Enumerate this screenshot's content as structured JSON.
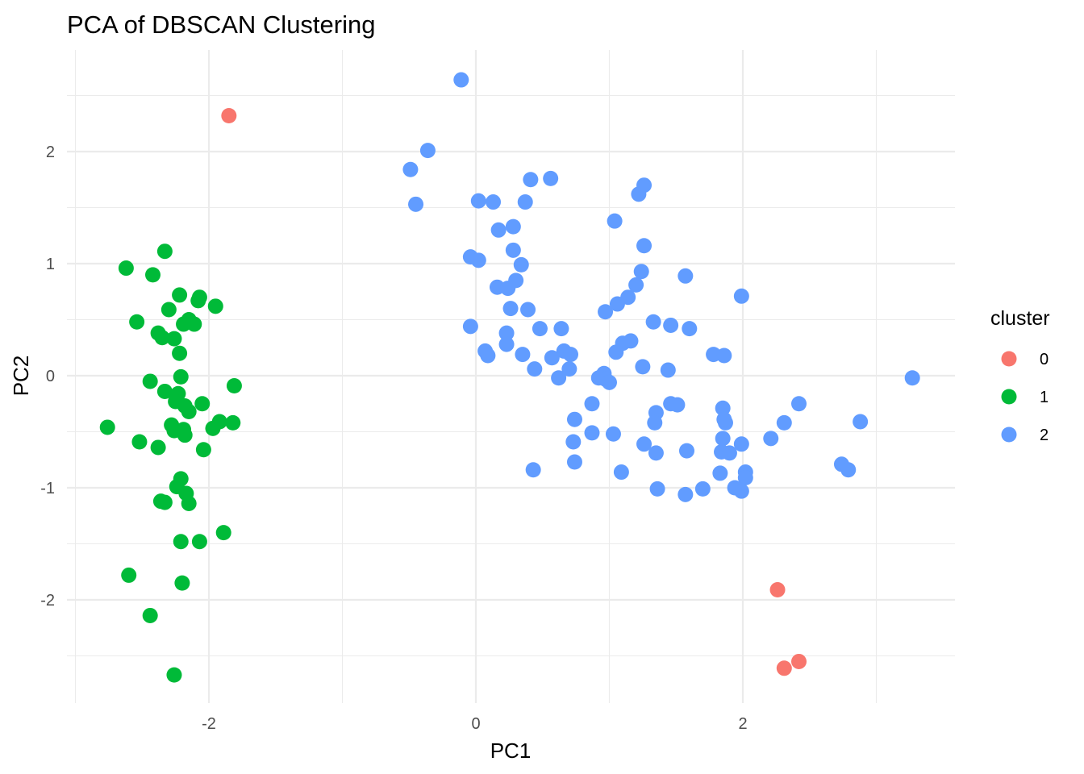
{
  "chart_data": {
    "type": "scatter",
    "title": "PCA of DBSCAN Clustering",
    "xlabel": "PC1",
    "ylabel": "PC2",
    "xlim": [
      -3.0,
      3.6
    ],
    "ylim": [
      -2.9,
      2.9
    ],
    "x_ticks": [
      -2,
      0,
      2
    ],
    "x_tick_labels": [
      "-2",
      "0",
      "2"
    ],
    "y_ticks": [
      -2,
      -1,
      0,
      1,
      2
    ],
    "y_tick_labels": [
      "-2",
      "-1",
      "0",
      "1",
      "2"
    ],
    "grid": true,
    "legend": {
      "title": "cluster",
      "position": "right",
      "entries": [
        {
          "label": "0",
          "color": "#F8766D"
        },
        {
          "label": "1",
          "color": "#00BA38"
        },
        {
          "label": "2",
          "color": "#619CFF"
        }
      ]
    },
    "series": [
      {
        "name": "0",
        "color": "#F8766D",
        "points": [
          [
            -1.85,
            2.32
          ],
          [
            2.26,
            -1.91
          ],
          [
            2.31,
            -2.61
          ],
          [
            2.42,
            -2.55
          ]
        ]
      },
      {
        "name": "1",
        "color": "#00BA38",
        "points": [
          [
            -2.33,
            1.11
          ],
          [
            -2.62,
            0.96
          ],
          [
            -2.42,
            0.9
          ],
          [
            -2.22,
            0.72
          ],
          [
            -2.07,
            0.7
          ],
          [
            -2.08,
            0.67
          ],
          [
            -1.95,
            0.62
          ],
          [
            -2.3,
            0.59
          ],
          [
            -2.15,
            0.5
          ],
          [
            -2.11,
            0.46
          ],
          [
            -2.19,
            0.46
          ],
          [
            -2.54,
            0.48
          ],
          [
            -2.38,
            0.38
          ],
          [
            -2.35,
            0.34
          ],
          [
            -2.26,
            0.33
          ],
          [
            -2.22,
            0.2
          ],
          [
            -2.21,
            -0.01
          ],
          [
            -2.44,
            -0.05
          ],
          [
            -2.33,
            -0.14
          ],
          [
            -2.23,
            -0.16
          ],
          [
            -2.25,
            -0.23
          ],
          [
            -1.81,
            -0.09
          ],
          [
            -2.18,
            -0.27
          ],
          [
            -2.15,
            -0.32
          ],
          [
            -2.05,
            -0.25
          ],
          [
            -2.28,
            -0.44
          ],
          [
            -2.26,
            -0.49
          ],
          [
            -2.19,
            -0.48
          ],
          [
            -2.18,
            -0.53
          ],
          [
            -1.97,
            -0.47
          ],
          [
            -1.92,
            -0.41
          ],
          [
            -1.82,
            -0.42
          ],
          [
            -2.76,
            -0.46
          ],
          [
            -2.52,
            -0.59
          ],
          [
            -2.38,
            -0.64
          ],
          [
            -2.04,
            -0.66
          ],
          [
            -2.21,
            -0.92
          ],
          [
            -2.24,
            -0.99
          ],
          [
            -2.17,
            -1.05
          ],
          [
            -2.36,
            -1.12
          ],
          [
            -2.33,
            -1.13
          ],
          [
            -2.15,
            -1.14
          ],
          [
            -1.89,
            -1.4
          ],
          [
            -2.21,
            -1.48
          ],
          [
            -2.07,
            -1.48
          ],
          [
            -2.6,
            -1.78
          ],
          [
            -2.2,
            -1.85
          ],
          [
            -2.44,
            -2.14
          ],
          [
            -2.26,
            -2.67
          ]
        ]
      },
      {
        "name": "2",
        "color": "#619CFF",
        "points": [
          [
            -0.11,
            2.64
          ],
          [
            -0.36,
            2.01
          ],
          [
            -0.49,
            1.84
          ],
          [
            -0.45,
            1.53
          ],
          [
            0.41,
            1.75
          ],
          [
            0.56,
            1.76
          ],
          [
            0.02,
            1.56
          ],
          [
            0.13,
            1.55
          ],
          [
            0.37,
            1.55
          ],
          [
            1.26,
            1.7
          ],
          [
            1.22,
            1.62
          ],
          [
            1.04,
            1.38
          ],
          [
            0.17,
            1.3
          ],
          [
            0.28,
            1.33
          ],
          [
            0.28,
            1.12
          ],
          [
            1.26,
            1.16
          ],
          [
            -0.04,
            1.06
          ],
          [
            0.02,
            1.03
          ],
          [
            0.34,
            0.99
          ],
          [
            1.24,
            0.93
          ],
          [
            1.57,
            0.89
          ],
          [
            0.3,
            0.85
          ],
          [
            0.16,
            0.79
          ],
          [
            0.24,
            0.78
          ],
          [
            1.2,
            0.81
          ],
          [
            1.14,
            0.7
          ],
          [
            1.06,
            0.64
          ],
          [
            0.97,
            0.57
          ],
          [
            0.39,
            0.59
          ],
          [
            0.26,
            0.6
          ],
          [
            1.99,
            0.71
          ],
          [
            -0.04,
            0.44
          ],
          [
            0.48,
            0.42
          ],
          [
            0.64,
            0.42
          ],
          [
            1.33,
            0.48
          ],
          [
            1.46,
            0.45
          ],
          [
            1.6,
            0.42
          ],
          [
            0.23,
            0.38
          ],
          [
            0.23,
            0.28
          ],
          [
            1.1,
            0.29
          ],
          [
            1.16,
            0.31
          ],
          [
            1.05,
            0.21
          ],
          [
            0.07,
            0.22
          ],
          [
            0.09,
            0.18
          ],
          [
            0.35,
            0.19
          ],
          [
            0.57,
            0.16
          ],
          [
            0.66,
            0.22
          ],
          [
            0.71,
            0.19
          ],
          [
            1.78,
            0.19
          ],
          [
            1.86,
            0.18
          ],
          [
            0.44,
            0.06
          ],
          [
            0.7,
            0.06
          ],
          [
            1.25,
            0.08
          ],
          [
            1.44,
            0.05
          ],
          [
            0.62,
            -0.02
          ],
          [
            0.92,
            -0.02
          ],
          [
            0.96,
            0.02
          ],
          [
            0.97,
            -0.03
          ],
          [
            1.0,
            -0.06
          ],
          [
            3.27,
            -0.02
          ],
          [
            0.87,
            -0.25
          ],
          [
            1.46,
            -0.25
          ],
          [
            1.51,
            -0.26
          ],
          [
            1.85,
            -0.29
          ],
          [
            2.42,
            -0.25
          ],
          [
            1.35,
            -0.33
          ],
          [
            0.74,
            -0.39
          ],
          [
            1.34,
            -0.42
          ],
          [
            1.87,
            -0.42
          ],
          [
            1.86,
            -0.39
          ],
          [
            2.31,
            -0.42
          ],
          [
            2.88,
            -0.41
          ],
          [
            0.87,
            -0.51
          ],
          [
            1.03,
            -0.52
          ],
          [
            0.73,
            -0.59
          ],
          [
            1.85,
            -0.56
          ],
          [
            2.21,
            -0.56
          ],
          [
            1.26,
            -0.61
          ],
          [
            1.99,
            -0.61
          ],
          [
            1.35,
            -0.69
          ],
          [
            1.58,
            -0.67
          ],
          [
            1.84,
            -0.68
          ],
          [
            1.9,
            -0.69
          ],
          [
            0.74,
            -0.77
          ],
          [
            0.43,
            -0.84
          ],
          [
            1.09,
            -0.86
          ],
          [
            1.83,
            -0.87
          ],
          [
            2.02,
            -0.86
          ],
          [
            2.02,
            -0.91
          ],
          [
            2.74,
            -0.79
          ],
          [
            2.79,
            -0.84
          ],
          [
            1.36,
            -1.01
          ],
          [
            1.57,
            -1.06
          ],
          [
            1.7,
            -1.01
          ],
          [
            1.94,
            -1.0
          ],
          [
            1.99,
            -1.03
          ]
        ]
      }
    ]
  }
}
